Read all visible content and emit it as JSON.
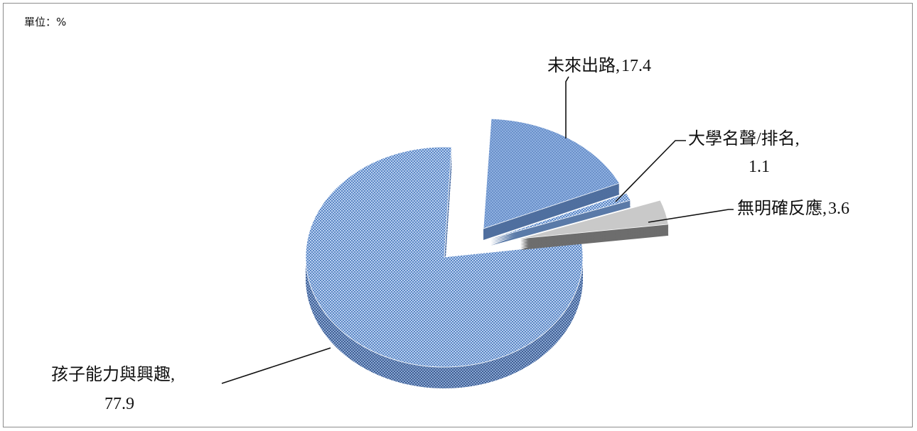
{
  "unit_label": "單位：%",
  "colors": {
    "blue_top": "#a9c4ea",
    "blue_check": "#5c87c6",
    "blue_side": "#6f8fc0",
    "gray_top": "#c7c7c7",
    "gray_side": "#6e6e6e",
    "leader": "#111111"
  },
  "chart_data": {
    "type": "pie",
    "style": "3d-exploded",
    "slices": [
      {
        "label": "孩子能力與興趣,",
        "value_label": "77.9",
        "value": 77.9,
        "color": "checkered-blue"
      },
      {
        "label": "未來出路,",
        "value_label": "17.4",
        "value": 17.4,
        "color": "blue"
      },
      {
        "label": "大學名聲/排名,",
        "value_label": "1.1",
        "value": 1.1,
        "color": "checkered-blue"
      },
      {
        "label": "無明確反應,",
        "value_label": "3.6",
        "value": 3.6,
        "color": "gray"
      }
    ]
  }
}
